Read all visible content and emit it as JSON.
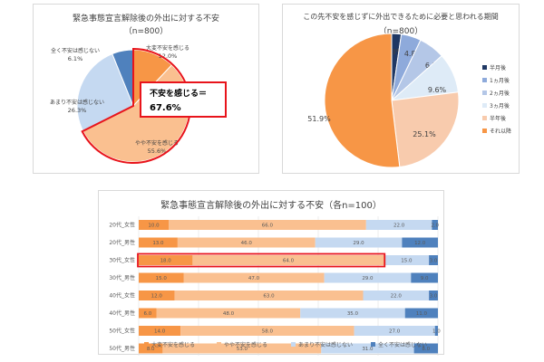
{
  "chart_data": [
    {
      "type": "pie",
      "title": "緊急事態宣言解除後の外出に対する不安",
      "subtitle": "（n=800）",
      "start_angle_deg": 0,
      "slices": [
        {
          "label": "大変不安を感じる",
          "value_label": "12.0%",
          "value": 12.0,
          "color": "#f79646"
        },
        {
          "label": "やや不安を感じる",
          "value_label": "55.6%",
          "value": 55.6,
          "color": "#fac090"
        },
        {
          "label": "あまり不安は感じない",
          "value_label": "26.3%",
          "value": 26.3,
          "color": "#c5d9f1"
        },
        {
          "label": "全く不安は感じない",
          "value_label": "6.1%",
          "value": 6.1,
          "color": "#4f81bd"
        }
      ],
      "callout": {
        "line1": "不安を感じる＝",
        "line2": "67.6%",
        "border_color": "#e8141b"
      }
    },
    {
      "type": "pie",
      "title": "この先不安を感じずに外出できるために必要と思われる期間",
      "subtitle": "（n=800）",
      "start_angle_deg": 0,
      "slices": [
        {
          "label": "半月後",
          "value_label": "2.3%",
          "value": 2.3,
          "color": "#1f3864"
        },
        {
          "label": "1ヵ月後",
          "value_label": "4.8%",
          "value": 4.8,
          "color": "#8eaadb"
        },
        {
          "label": "2ヵ月後",
          "value_label": "6.3%",
          "value": 6.3,
          "color": "#b4c7e7"
        },
        {
          "label": "3ヵ月後",
          "value_label": "9.6%",
          "value": 9.6,
          "color": "#deebf7"
        },
        {
          "label": "半年後",
          "value_label": "25.1%",
          "value": 25.1,
          "color": "#f8cbad"
        },
        {
          "label": "それ以降",
          "value_label": "51.9%",
          "value": 51.9,
          "color": "#f79646"
        }
      ],
      "legend_position": "right"
    },
    {
      "type": "bar",
      "orientation": "horizontal-stacked-100",
      "title": "緊急事態宣言解除後の外出に対する不安（各n=100）",
      "categories": [
        "20代_女性",
        "20代_男性",
        "30代_女性",
        "30代_男性",
        "40代_女性",
        "40代_男性",
        "50代_女性",
        "50代_男性"
      ],
      "series": [
        {
          "name": "大変不安を感じる",
          "color": "#f79646",
          "values": [
            10.0,
            13.0,
            18.0,
            15.0,
            12.0,
            6.0,
            14.0,
            8.0
          ]
        },
        {
          "name": "やや不安を感じる",
          "color": "#fac090",
          "values": [
            66.0,
            46.0,
            64.0,
            47.0,
            63.0,
            48.0,
            58.0,
            53.0
          ]
        },
        {
          "name": "あまり不安は感じない",
          "color": "#c5d9f1",
          "values": [
            22.0,
            29.0,
            15.0,
            29.0,
            22.0,
            35.0,
            27.0,
            31.0
          ]
        },
        {
          "name": "全く不安は感じない",
          "color": "#4f81bd",
          "values": [
            2.0,
            12.0,
            3.0,
            9.0,
            3.0,
            11.0,
            1.0,
            8.0
          ]
        }
      ],
      "value_labels": [
        [
          "10.0",
          "66.0",
          "22.0",
          "2.0"
        ],
        [
          "13.0",
          "46.0",
          "29.0",
          "12.0"
        ],
        [
          "18.0",
          "64.0",
          "15.0",
          "3.0"
        ],
        [
          "15.0",
          "47.0",
          "29.0",
          "9.0"
        ],
        [
          "12.0",
          "63.0",
          "22.0",
          "3.0"
        ],
        [
          "6.0",
          "48.0",
          "35.0",
          "11.0"
        ],
        [
          "14.0",
          "58.0",
          "27.0",
          "1.0"
        ],
        [
          "8.0",
          "53.0",
          "31.0",
          "8.0"
        ]
      ],
      "highlight_category": "30代_女性",
      "highlight_color": "#e8141b",
      "xlim": [
        0,
        100
      ],
      "legend_position": "bottom"
    }
  ]
}
